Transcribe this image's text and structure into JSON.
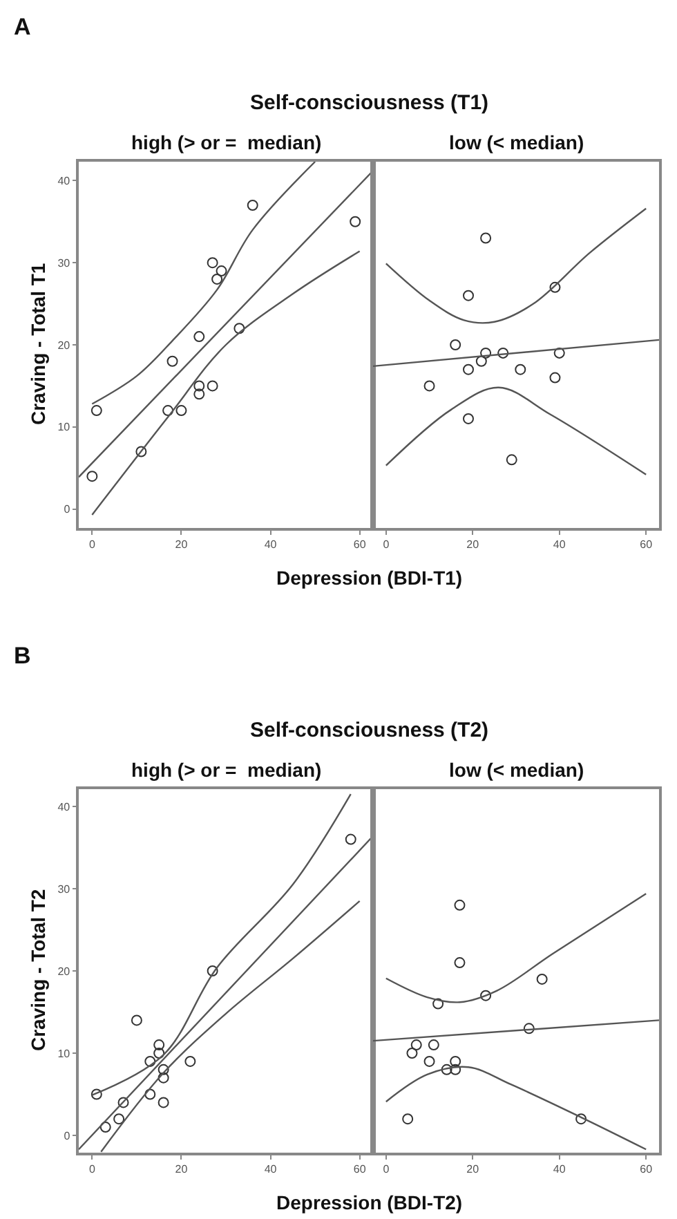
{
  "chart_data": [
    {
      "type": "scatter",
      "title": "Self-consciousness (T1)",
      "subtitle": "high (> or =  median)",
      "xlabel": "Depression (BDI-T1)",
      "ylabel": "Craving - Total T1",
      "annotations": [
        "A"
      ],
      "xlim": [
        -3,
        63
      ],
      "ylim": [
        -2.3,
        42.3
      ],
      "xticks": [
        0,
        20,
        40,
        60
      ],
      "yticks": [
        0,
        10,
        20,
        30,
        40
      ],
      "series": [
        {
          "color": "#333333",
          "marker": "circle",
          "x": [
            0,
            1,
            11,
            17,
            18,
            20,
            24,
            24,
            24,
            27,
            27,
            28,
            29,
            33,
            36,
            59
          ],
          "values": [
            4,
            12,
            7,
            12,
            18,
            12,
            21,
            15,
            14,
            30,
            15,
            28,
            29,
            22,
            37,
            35
          ]
        },
        {
          "type": "line",
          "color": "#555555",
          "x": [
            -3,
            63
          ],
          "values": [
            3.9,
            41.2
          ]
        },
        {
          "type": "line",
          "color": "#555555",
          "x": [
            0,
            10,
            18,
            28,
            36,
            50
          ],
          "values": [
            12.8,
            16.2,
            20.5,
            26.7,
            34,
            42.3
          ]
        },
        {
          "type": "line",
          "color": "#555555",
          "x": [
            0,
            17,
            30,
            45,
            60
          ],
          "values": [
            -0.7,
            11.2,
            20,
            26.2,
            31.4
          ]
        }
      ]
    },
    {
      "type": "scatter",
      "subtitle": "low (< median)",
      "xlim": [
        -3,
        63
      ],
      "ylim": [
        -2.3,
        42.3
      ],
      "xticks": [
        0,
        20,
        40,
        60
      ],
      "tick_labels": "x",
      "series": [
        {
          "color": "#333333",
          "marker": "circle",
          "x": [
            10,
            16,
            19,
            19,
            19,
            22,
            23,
            23,
            27,
            29,
            31,
            39,
            39,
            40
          ],
          "values": [
            15,
            20,
            26,
            17,
            11,
            18,
            33,
            19,
            19,
            6,
            17,
            27,
            16,
            19
          ]
        },
        {
          "type": "line",
          "color": "#555555",
          "x": [
            -3,
            63
          ],
          "values": [
            17.4,
            20.6
          ]
        },
        {
          "type": "line",
          "color": "#555555",
          "x": [
            0,
            10,
            18,
            25,
            34,
            47,
            60
          ],
          "values": [
            29.9,
            25.4,
            23,
            22.8,
            25,
            31.2,
            36.6
          ]
        },
        {
          "type": "line",
          "color": "#555555",
          "x": [
            0,
            15,
            26,
            38,
            60
          ],
          "values": [
            5.3,
            12.1,
            14.8,
            11.5,
            4.2
          ]
        }
      ]
    },
    {
      "type": "scatter",
      "title": "Self-consciousness (T2)",
      "subtitle": "high (> or =  median)",
      "xlabel": "Depression (BDI-T2)",
      "ylabel": "Craving - Total T2",
      "annotations": [
        "B"
      ],
      "xlim": [
        -3,
        63
      ],
      "ylim": [
        -2.1,
        42.1
      ],
      "xticks": [
        0,
        20,
        40,
        60
      ],
      "yticks": [
        0,
        10,
        20,
        30,
        40
      ],
      "series": [
        {
          "color": "#333333",
          "marker": "circle",
          "x": [
            1,
            3,
            6,
            7,
            10,
            13,
            13,
            15,
            15,
            16,
            16,
            16,
            22,
            27,
            58
          ],
          "values": [
            5,
            1,
            2,
            4,
            14,
            9,
            5,
            11,
            10,
            8,
            7,
            4,
            9,
            20,
            36
          ]
        },
        {
          "type": "line",
          "color": "#555555",
          "x": [
            -3,
            63
          ],
          "values": [
            -1.7,
            36.4
          ]
        },
        {
          "type": "line",
          "color": "#555555",
          "x": [
            0,
            16,
            28,
            45,
            58
          ],
          "values": [
            4.9,
            9.8,
            20.4,
            30.5,
            41.5
          ]
        },
        {
          "type": "line",
          "color": "#555555",
          "x": [
            2,
            16,
            30,
            45,
            60
          ],
          "values": [
            -2,
            7.6,
            14.8,
            21.5,
            28.5
          ]
        }
      ]
    },
    {
      "type": "scatter",
      "subtitle": "low (< median)",
      "xlim": [
        -3,
        63
      ],
      "ylim": [
        -2.1,
        42.1
      ],
      "xticks": [
        0,
        20,
        40,
        60
      ],
      "tick_labels": "x",
      "series": [
        {
          "color": "#333333",
          "marker": "circle",
          "x": [
            5,
            6,
            7,
            10,
            11,
            12,
            14,
            16,
            16,
            17,
            17,
            23,
            33,
            36,
            45
          ],
          "values": [
            2,
            10,
            11,
            9,
            11,
            16,
            8,
            9,
            8,
            28,
            21,
            17,
            13,
            19,
            2
          ]
        },
        {
          "type": "line",
          "color": "#555555",
          "x": [
            -3,
            63
          ],
          "values": [
            11.5,
            14
          ]
        },
        {
          "type": "line",
          "color": "#555555",
          "x": [
            0,
            9.5,
            17,
            25.6,
            38.5,
            60
          ],
          "values": [
            19.1,
            16.8,
            16.2,
            17.6,
            22.1,
            29.4
          ]
        },
        {
          "type": "line",
          "color": "#555555",
          "x": [
            0,
            9.5,
            19,
            28.8,
            45,
            60
          ],
          "values": [
            4.1,
            7.4,
            8.3,
            6.2,
            2.2,
            -1.7
          ]
        }
      ]
    }
  ]
}
